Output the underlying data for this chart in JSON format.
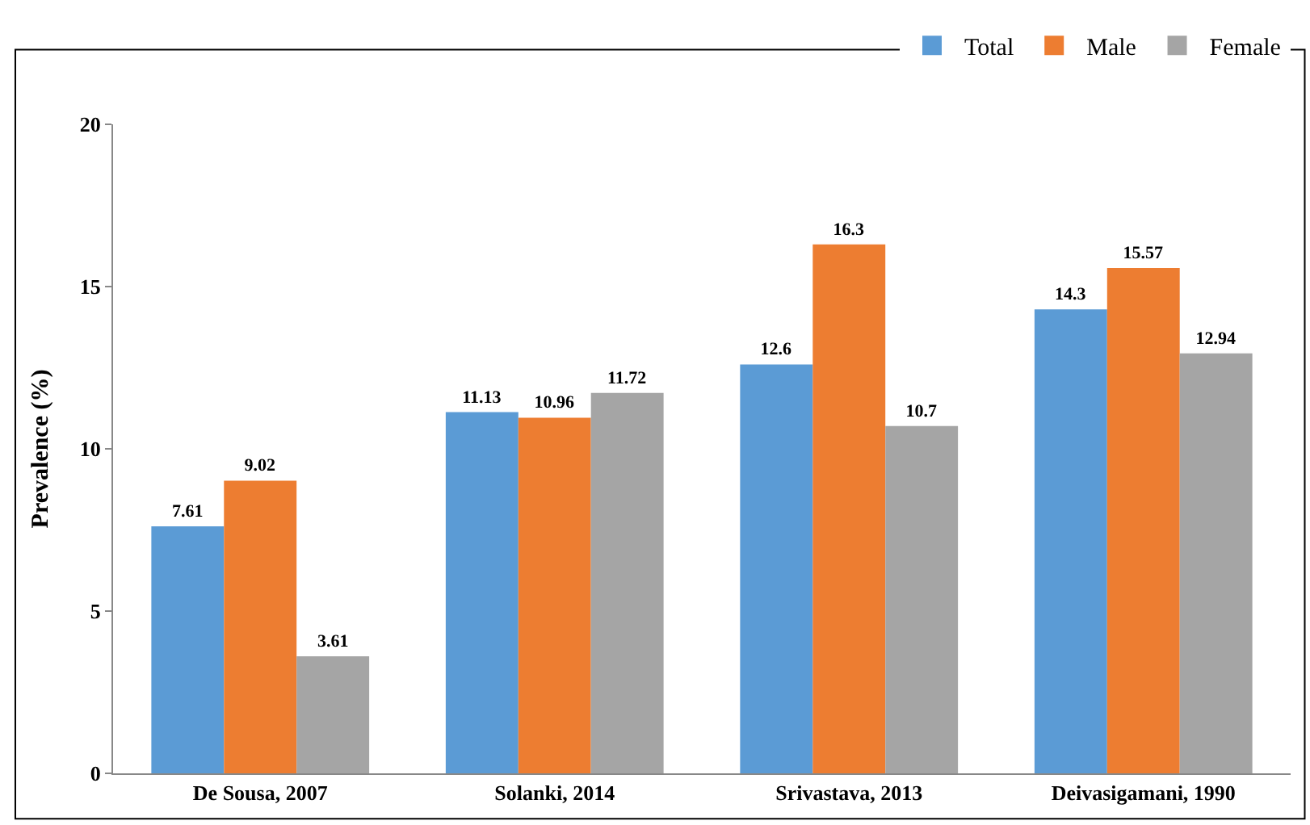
{
  "chart_data": {
    "type": "bar",
    "ylabel": "Prevalence (%)",
    "categories": [
      "De Sousa, 2007",
      "Solanki, 2014",
      "Srivastava, 2013",
      "Deivasigamani, 1990"
    ],
    "series": [
      {
        "name": "Total",
        "color": "#5b9bd5",
        "values": [
          7.61,
          11.13,
          12.6,
          14.3
        ]
      },
      {
        "name": "Male",
        "color": "#ed7d31",
        "values": [
          9.02,
          10.96,
          16.3,
          15.57
        ]
      },
      {
        "name": "Female",
        "color": "#a5a5a5",
        "values": [
          3.61,
          11.72,
          10.7,
          12.94
        ]
      }
    ],
    "ylim": [
      0,
      20
    ],
    "yticks": [
      0,
      5,
      10,
      15,
      20
    ],
    "grid": false,
    "legend": "top right",
    "data_labels": true
  }
}
